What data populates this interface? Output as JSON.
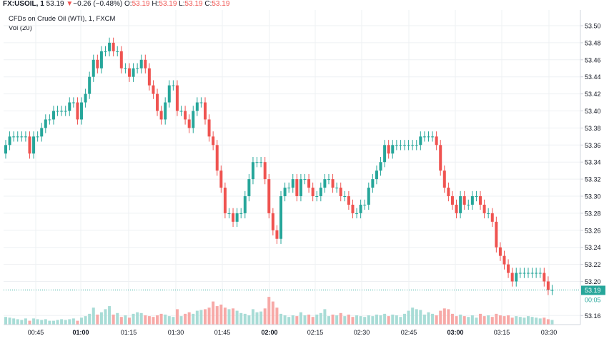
{
  "header": {
    "symbol": "FX:USOIL, 1",
    "last": "53.19",
    "change_arrow": "▼",
    "change": "−0.26 (−0.48%)",
    "open_label": "O:",
    "open": "53.19",
    "high_label": "H:",
    "high": "53.19",
    "low_label": "L:",
    "low": "53.19",
    "close_label": "C:",
    "close": "53.19"
  },
  "legend": {
    "title": "CFDs on Crude Oil (WTI), 1, FXCM",
    "volume": "Vol (20)"
  },
  "colors": {
    "up": "#26a69a",
    "down": "#ef5350",
    "vol_up": "#a8dcd6",
    "vol_down": "#f7a9a7",
    "grid": "#eef0f3",
    "axis": "#d1d4dc",
    "price_tag": "#26a69a"
  },
  "chart_data": {
    "type": "candlestick",
    "title": "CFDs on Crude Oil (WTI), 1, FXCM",
    "ylim": [
      53.15,
      53.51
    ],
    "y_ticks": [
      "53.50",
      "53.48",
      "53.46",
      "53.44",
      "53.42",
      "53.40",
      "53.38",
      "53.36",
      "53.34",
      "53.32",
      "53.30",
      "53.28",
      "53.26",
      "53.24",
      "53.22",
      "53.20",
      "53.16"
    ],
    "x_ticks": [
      {
        "label": "00:45",
        "bold": false
      },
      {
        "label": "01:00",
        "bold": true
      },
      {
        "label": "01:15",
        "bold": false
      },
      {
        "label": "01:30",
        "bold": false
      },
      {
        "label": "01:45",
        "bold": false
      },
      {
        "label": "02:00",
        "bold": true
      },
      {
        "label": "02:15",
        "bold": false
      },
      {
        "label": "02:30",
        "bold": false
      },
      {
        "label": "02:45",
        "bold": false
      },
      {
        "label": "03:00",
        "bold": true
      },
      {
        "label": "03:15",
        "bold": false
      },
      {
        "label": "03:30",
        "bold": false
      }
    ],
    "price_label": "53.19",
    "countdown_label": "00:05",
    "closes": [
      53.36,
      53.37,
      53.37,
      53.37,
      53.37,
      53.37,
      53.35,
      53.37,
      53.37,
      53.38,
      53.39,
      53.39,
      53.4,
      53.4,
      53.4,
      53.4,
      53.41,
      53.41,
      53.39,
      53.41,
      53.42,
      53.44,
      53.46,
      53.45,
      53.47,
      53.47,
      53.48,
      53.47,
      53.47,
      53.45,
      53.45,
      53.44,
      53.45,
      53.45,
      53.46,
      53.45,
      53.43,
      53.42,
      53.4,
      53.39,
      53.41,
      53.43,
      53.43,
      53.4,
      53.4,
      53.39,
      53.38,
      53.4,
      53.41,
      53.41,
      53.39,
      53.37,
      53.36,
      53.33,
      53.31,
      53.28,
      53.28,
      53.27,
      53.28,
      53.28,
      53.3,
      53.32,
      53.34,
      53.34,
      53.34,
      53.32,
      53.28,
      53.26,
      53.25,
      53.3,
      53.31,
      53.31,
      53.32,
      53.3,
      53.32,
      53.32,
      53.31,
      53.3,
      53.3,
      53.31,
      53.32,
      53.32,
      53.31,
      53.31,
      53.3,
      53.3,
      53.29,
      53.28,
      53.28,
      53.29,
      53.29,
      53.31,
      53.32,
      53.33,
      53.34,
      53.36,
      53.35,
      53.36,
      53.36,
      53.36,
      53.36,
      53.36,
      53.36,
      53.36,
      53.37,
      53.37,
      53.37,
      53.37,
      53.36,
      53.33,
      53.31,
      53.3,
      53.29,
      53.28,
      53.3,
      53.29,
      53.29,
      53.3,
      53.3,
      53.29,
      53.28,
      53.28,
      53.27,
      53.24,
      53.23,
      53.22,
      53.21,
      53.2,
      53.21,
      53.21,
      53.21,
      53.21,
      53.21,
      53.21,
      53.21,
      53.2,
      53.19,
      53.19
    ],
    "volumes": [
      10,
      9,
      8,
      7,
      6,
      8,
      5,
      8,
      7,
      6,
      7,
      5,
      5,
      6,
      7,
      6,
      7,
      8,
      5,
      9,
      11,
      14,
      22,
      13,
      16,
      20,
      24,
      13,
      15,
      10,
      12,
      9,
      14,
      16,
      15,
      12,
      11,
      10,
      12,
      14,
      13,
      11,
      10,
      20,
      11,
      14,
      16,
      14,
      18,
      19,
      20,
      22,
      30,
      24,
      26,
      22,
      20,
      21,
      18,
      15,
      14,
      12,
      20,
      16,
      17,
      21,
      36,
      30,
      22,
      14,
      12,
      10,
      12,
      11,
      16,
      12,
      13,
      10,
      13,
      15,
      20,
      11,
      13,
      12,
      15,
      11,
      13,
      10,
      12,
      11,
      10,
      12,
      11,
      13,
      12,
      14,
      11,
      13,
      12,
      10,
      14,
      18,
      22,
      20,
      19,
      13,
      16,
      14,
      12,
      18,
      21,
      20,
      14,
      11,
      13,
      11,
      10,
      12,
      9,
      14,
      11,
      12,
      10,
      14,
      12,
      11,
      12,
      9,
      11,
      10,
      9,
      11,
      10,
      9,
      8,
      9,
      7,
      6
    ]
  }
}
